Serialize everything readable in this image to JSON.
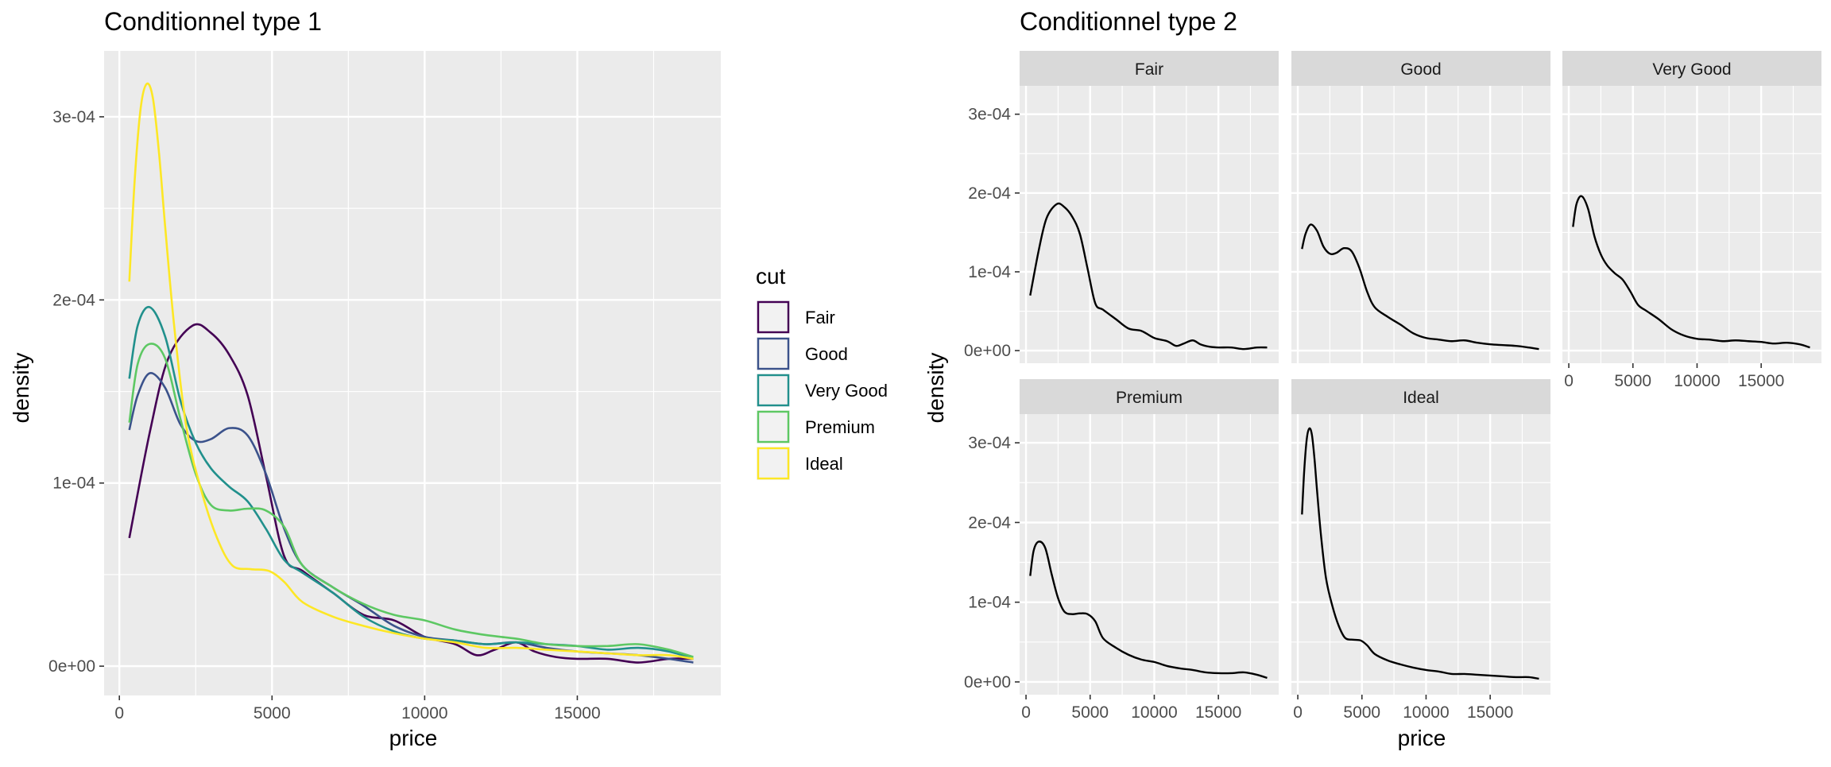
{
  "colors": {
    "panel_bg": "#EBEBEB",
    "strip_bg": "#D9D9D9",
    "grid": "#FFFFFF",
    "tick_text": "#4D4D4D",
    "text": "#000000",
    "facet_line": "#000000",
    "series": {
      "Fair": "#440154",
      "Good": "#3B528B",
      "Very Good": "#21908C",
      "Premium": "#5DC863",
      "Ideal": "#FDE725"
    }
  },
  "chart_data": [
    {
      "type": "line",
      "title": "Conditionnel type 1",
      "xlabel": "price",
      "ylabel": "density",
      "xlim": [
        -500,
        19700
      ],
      "ylim": [
        -1.6e-05,
        0.000336
      ],
      "x_ticks": [
        0,
        5000,
        10000,
        15000
      ],
      "x_tick_labels": [
        "0",
        "5000",
        "10000",
        "15000"
      ],
      "y_ticks": [
        0,
        0.0001,
        0.0002,
        0.0003
      ],
      "y_tick_labels": [
        "0e+00",
        "1e-04",
        "2e-04",
        "3e-04"
      ],
      "grid": true,
      "legend": {
        "title": "cut",
        "position": "right",
        "entries": [
          "Fair",
          "Good",
          "Very Good",
          "Premium",
          "Ideal"
        ]
      },
      "series": [
        {
          "name": "Fair",
          "x": [
            326,
            1000,
            1600,
            2400,
            3000,
            3600,
            4200,
            4800,
            5400,
            6000,
            7000,
            8000,
            9000,
            10000,
            11000,
            11700,
            12300,
            13000,
            13600,
            14300,
            15000,
            16000,
            17000,
            18000,
            18800
          ],
          "y": [
            7e-05,
            0.000128,
            0.000168,
            0.000186,
            0.000182,
            0.00017,
            0.000148,
            0.000104,
            6e-05,
            5.2e-05,
            4e-05,
            2.8e-05,
            2.5e-05,
            1.6e-05,
            1.2e-05,
            6e-06,
            9e-06,
            1.3e-05,
            8e-06,
            5e-06,
            4e-06,
            4e-06,
            2e-06,
            4e-06,
            4e-06
          ]
        },
        {
          "name": "Good",
          "x": [
            326,
            600,
            1000,
            1500,
            2000,
            2500,
            3000,
            3600,
            4200,
            4800,
            5400,
            6000,
            7000,
            8000,
            9000,
            10000,
            11000,
            12000,
            13000,
            14000,
            15000,
            16000,
            17000,
            18000,
            18800
          ],
          "y": [
            0.000129,
            0.000148,
            0.00016,
            0.000152,
            0.000132,
            0.000123,
            0.000124,
            0.00013,
            0.000126,
            0.000105,
            7.5e-05,
            5.5e-05,
            4.3e-05,
            3.3e-05,
            2.2e-05,
            1.6e-05,
            1.4e-05,
            1.2e-05,
            1.3e-05,
            1e-05,
            8e-06,
            7e-06,
            6e-06,
            4e-06,
            2e-06
          ]
        },
        {
          "name": "Very Good",
          "x": [
            326,
            600,
            1000,
            1500,
            2000,
            2500,
            3000,
            3600,
            4200,
            4800,
            5400,
            6000,
            7000,
            8000,
            9000,
            10000,
            11000,
            12000,
            13000,
            14000,
            15000,
            16000,
            17000,
            18000,
            18800
          ],
          "y": [
            0.000157,
            0.000186,
            0.000196,
            0.00018,
            0.000145,
            0.000122,
            0.000108,
            9.8e-05,
            9e-05,
            7.5e-05,
            5.8e-05,
            5.1e-05,
            4e-05,
            2.7e-05,
            1.9e-05,
            1.5e-05,
            1.4e-05,
            1.2e-05,
            1.3e-05,
            1.2e-05,
            1.1e-05,
            9e-06,
            1e-05,
            8e-06,
            4e-06
          ]
        },
        {
          "name": "Premium",
          "x": [
            326,
            600,
            1000,
            1500,
            2000,
            2500,
            3000,
            3600,
            4200,
            4800,
            5400,
            6000,
            7000,
            8000,
            9000,
            10000,
            11000,
            12000,
            13000,
            14000,
            15000,
            16000,
            17000,
            18000,
            18800
          ],
          "y": [
            0.000133,
            0.000165,
            0.000176,
            0.000168,
            0.000135,
            0.000105,
            8.8e-05,
            8.5e-05,
            8.6e-05,
            8.5e-05,
            7.6e-05,
            5.5e-05,
            4.3e-05,
            3.4e-05,
            2.8e-05,
            2.5e-05,
            2e-05,
            1.7e-05,
            1.5e-05,
            1.2e-05,
            1.1e-05,
            1.1e-05,
            1.2e-05,
            9e-06,
            5e-06
          ]
        },
        {
          "name": "Ideal",
          "x": [
            326,
            500,
            700,
            900,
            1100,
            1300,
            1500,
            1800,
            2200,
            2700,
            3200,
            3700,
            4300,
            4900,
            5400,
            6000,
            7000,
            8000,
            9000,
            10000,
            11000,
            12000,
            13000,
            14000,
            15000,
            16000,
            17000,
            18000,
            18800
          ],
          "y": [
            0.00021,
            0.000265,
            0.000305,
            0.000318,
            0.00031,
            0.00028,
            0.00024,
            0.000185,
            0.00013,
            9.5e-05,
            7e-05,
            5.5e-05,
            5.3e-05,
            5.2e-05,
            4.6e-05,
            3.5e-05,
            2.7e-05,
            2.2e-05,
            1.8e-05,
            1.5e-05,
            1.3e-05,
            1e-05,
            1e-05,
            9e-06,
            8e-06,
            7e-06,
            6e-06,
            6e-06,
            4e-06
          ]
        }
      ]
    },
    {
      "type": "line",
      "title": "Conditionnel type 2",
      "xlabel": "price",
      "ylabel": "density",
      "xlim": [
        -500,
        19700
      ],
      "ylim": [
        -1.6e-05,
        0.000336
      ],
      "x_ticks": [
        0,
        5000,
        10000,
        15000
      ],
      "x_tick_labels": [
        "0",
        "5000",
        "10000",
        "15000"
      ],
      "y_ticks": [
        0,
        0.0001,
        0.0002,
        0.0003
      ],
      "y_tick_labels": [
        "0e+00",
        "1e-04",
        "2e-04",
        "3e-04"
      ],
      "grid": true,
      "facets": [
        {
          "name": "Fair",
          "x": [
            326,
            1000,
            1600,
            2400,
            3000,
            3600,
            4200,
            4800,
            5400,
            6000,
            7000,
            8000,
            9000,
            10000,
            11000,
            11700,
            12300,
            13000,
            13600,
            14300,
            15000,
            16000,
            17000,
            18000,
            18800
          ],
          "y": [
            7e-05,
            0.000128,
            0.000168,
            0.000186,
            0.000182,
            0.00017,
            0.000148,
            0.000104,
            6e-05,
            5.2e-05,
            4e-05,
            2.8e-05,
            2.5e-05,
            1.6e-05,
            1.2e-05,
            6e-06,
            9e-06,
            1.3e-05,
            8e-06,
            5e-06,
            4e-06,
            4e-06,
            2e-06,
            4e-06,
            4e-06
          ]
        },
        {
          "name": "Good",
          "x": [
            326,
            600,
            1000,
            1500,
            2000,
            2500,
            3000,
            3600,
            4200,
            4800,
            5400,
            6000,
            7000,
            8000,
            9000,
            10000,
            11000,
            12000,
            13000,
            14000,
            15000,
            16000,
            17000,
            18000,
            18800
          ],
          "y": [
            0.000129,
            0.000148,
            0.00016,
            0.000152,
            0.000132,
            0.000123,
            0.000124,
            0.00013,
            0.000126,
            0.000105,
            7.5e-05,
            5.5e-05,
            4.3e-05,
            3.3e-05,
            2.2e-05,
            1.6e-05,
            1.4e-05,
            1.2e-05,
            1.3e-05,
            1e-05,
            8e-06,
            7e-06,
            6e-06,
            4e-06,
            2e-06
          ]
        },
        {
          "name": "Very Good",
          "x": [
            326,
            600,
            1000,
            1500,
            2000,
            2500,
            3000,
            3600,
            4200,
            4800,
            5400,
            6000,
            7000,
            8000,
            9000,
            10000,
            11000,
            12000,
            13000,
            14000,
            15000,
            16000,
            17000,
            18000,
            18800
          ],
          "y": [
            0.000157,
            0.000186,
            0.000196,
            0.00018,
            0.000145,
            0.000122,
            0.000108,
            9.8e-05,
            9e-05,
            7.5e-05,
            5.8e-05,
            5.1e-05,
            4e-05,
            2.7e-05,
            1.9e-05,
            1.5e-05,
            1.4e-05,
            1.2e-05,
            1.3e-05,
            1.2e-05,
            1.1e-05,
            9e-06,
            1e-05,
            8e-06,
            4e-06
          ]
        },
        {
          "name": "Premium",
          "x": [
            326,
            600,
            1000,
            1500,
            2000,
            2500,
            3000,
            3600,
            4200,
            4800,
            5400,
            6000,
            7000,
            8000,
            9000,
            10000,
            11000,
            12000,
            13000,
            14000,
            15000,
            16000,
            17000,
            18000,
            18800
          ],
          "y": [
            0.000133,
            0.000165,
            0.000176,
            0.000168,
            0.000135,
            0.000105,
            8.8e-05,
            8.5e-05,
            8.6e-05,
            8.5e-05,
            7.6e-05,
            5.5e-05,
            4.3e-05,
            3.4e-05,
            2.8e-05,
            2.5e-05,
            2e-05,
            1.7e-05,
            1.5e-05,
            1.2e-05,
            1.1e-05,
            1.1e-05,
            1.2e-05,
            9e-06,
            5e-06
          ]
        },
        {
          "name": "Ideal",
          "x": [
            326,
            500,
            700,
            900,
            1100,
            1300,
            1500,
            1800,
            2200,
            2700,
            3200,
            3700,
            4300,
            4900,
            5400,
            6000,
            7000,
            8000,
            9000,
            10000,
            11000,
            12000,
            13000,
            14000,
            15000,
            16000,
            17000,
            18000,
            18800
          ],
          "y": [
            0.00021,
            0.000265,
            0.000305,
            0.000318,
            0.00031,
            0.00028,
            0.00024,
            0.000185,
            0.00013,
            9.5e-05,
            7e-05,
            5.5e-05,
            5.3e-05,
            5.2e-05,
            4.6e-05,
            3.5e-05,
            2.7e-05,
            2.2e-05,
            1.8e-05,
            1.5e-05,
            1.3e-05,
            1e-05,
            1e-05,
            9e-06,
            8e-06,
            7e-06,
            6e-06,
            6e-06,
            4e-06
          ]
        }
      ]
    }
  ]
}
